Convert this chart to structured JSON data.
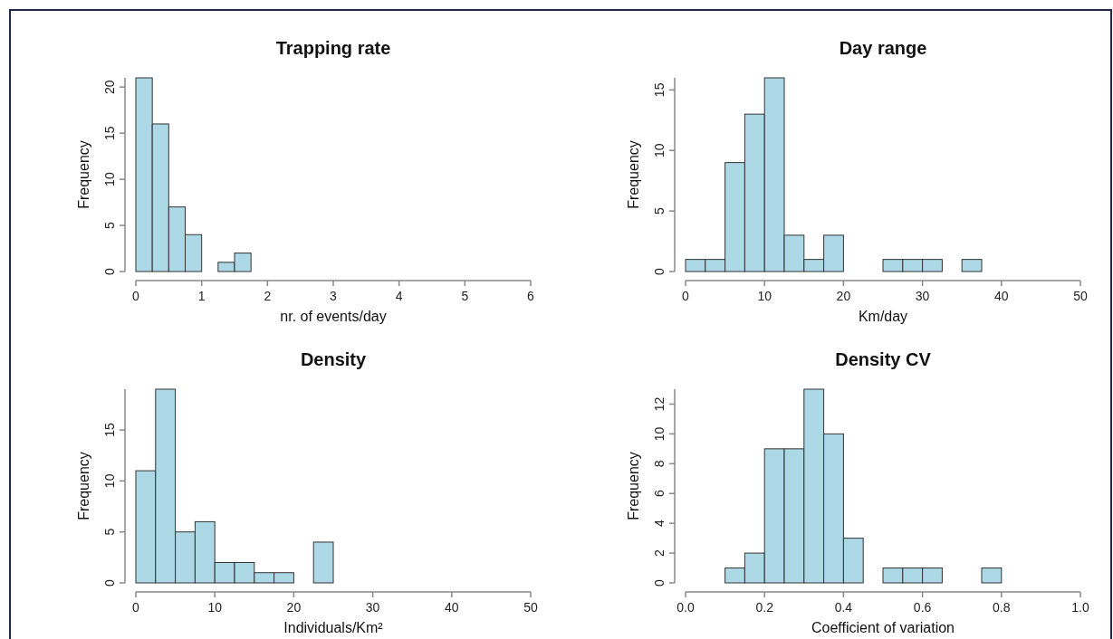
{
  "chart_data": [
    {
      "type": "histogram",
      "title": "Trapping rate",
      "xlabel": "nr. of events/day",
      "ylabel": "Frequency",
      "color": "#add8e6",
      "bins": [
        0,
        0.25,
        0.5,
        0.75,
        1,
        1.25,
        1.5,
        1.75,
        2,
        2.25,
        2.5,
        2.75,
        3,
        3.25,
        3.5,
        3.75,
        4,
        4.25,
        4.5,
        4.75,
        5,
        5.25,
        5.5,
        5.75,
        6
      ],
      "values": [
        21,
        16,
        7,
        4,
        0,
        1,
        2,
        0,
        0,
        0,
        0,
        0,
        0,
        0,
        0,
        0,
        0,
        0,
        0,
        0,
        0,
        0,
        0,
        0
      ],
      "xlim": [
        0,
        6
      ],
      "xticks": [
        0,
        1,
        2,
        3,
        4,
        5,
        6
      ],
      "ylim": [
        0,
        21
      ],
      "yticks": [
        0,
        5,
        10,
        15,
        20
      ],
      "grid": false
    },
    {
      "type": "histogram",
      "title": "Day range",
      "xlabel": "Km/day",
      "ylabel": "Frequency",
      "color": "#add8e6",
      "bins": [
        0,
        2.5,
        5,
        7.5,
        10,
        12.5,
        15,
        17.5,
        20,
        22.5,
        25,
        27.5,
        30,
        32.5,
        35,
        37.5,
        40,
        42.5,
        45,
        47.5,
        50
      ],
      "values": [
        1,
        1,
        9,
        13,
        16,
        3,
        1,
        3,
        0,
        0,
        1,
        1,
        1,
        0,
        1,
        0,
        0,
        0,
        0,
        0
      ],
      "xlim": [
        0,
        50
      ],
      "xticks": [
        0,
        10,
        20,
        30,
        40,
        50
      ],
      "ylim": [
        0,
        16
      ],
      "yticks": [
        0,
        5,
        10,
        15
      ],
      "grid": false
    },
    {
      "type": "histogram",
      "title": "Density",
      "xlabel": "Individuals/Km²",
      "ylabel": "Frequency",
      "color": "#add8e6",
      "bins": [
        0,
        2.5,
        5,
        7.5,
        10,
        12.5,
        15,
        17.5,
        20,
        22.5,
        25,
        27.5,
        30,
        32.5,
        35,
        37.5,
        40,
        42.5,
        45,
        47.5,
        50
      ],
      "values": [
        11,
        19,
        5,
        6,
        2,
        2,
        1,
        1,
        0,
        4,
        0,
        0,
        0,
        0,
        0,
        0,
        0,
        0,
        0,
        0
      ],
      "xlim": [
        0,
        50
      ],
      "xticks": [
        0,
        10,
        20,
        30,
        40,
        50
      ],
      "ylim": [
        0,
        19
      ],
      "yticks": [
        0,
        5,
        10,
        15
      ],
      "grid": false
    },
    {
      "type": "histogram",
      "title": "Density CV",
      "xlabel": "Coefficient of variation",
      "ylabel": "Frequency",
      "color": "#add8e6",
      "bins": [
        0,
        0.05,
        0.1,
        0.15,
        0.2,
        0.25,
        0.3,
        0.35,
        0.4,
        0.45,
        0.5,
        0.55,
        0.6,
        0.65,
        0.7,
        0.75,
        0.8,
        0.85,
        0.9,
        0.95,
        1
      ],
      "values": [
        0,
        0,
        1,
        2,
        9,
        9,
        13,
        10,
        3,
        0,
        1,
        1,
        1,
        0,
        0,
        1,
        0,
        0,
        0,
        0
      ],
      "xlim": [
        0,
        1
      ],
      "xticks": [
        {
          "value": 0,
          "label": "0.0"
        },
        {
          "value": 0.2,
          "label": "0.2"
        },
        {
          "value": 0.4,
          "label": "0.4"
        },
        {
          "value": 0.6,
          "label": "0.6"
        },
        {
          "value": 0.8,
          "label": "0.8"
        },
        {
          "value": 1,
          "label": "1.0"
        }
      ],
      "ylim": [
        0,
        13
      ],
      "yticks": [
        0,
        2,
        4,
        6,
        8,
        10,
        12
      ],
      "grid": false
    }
  ]
}
